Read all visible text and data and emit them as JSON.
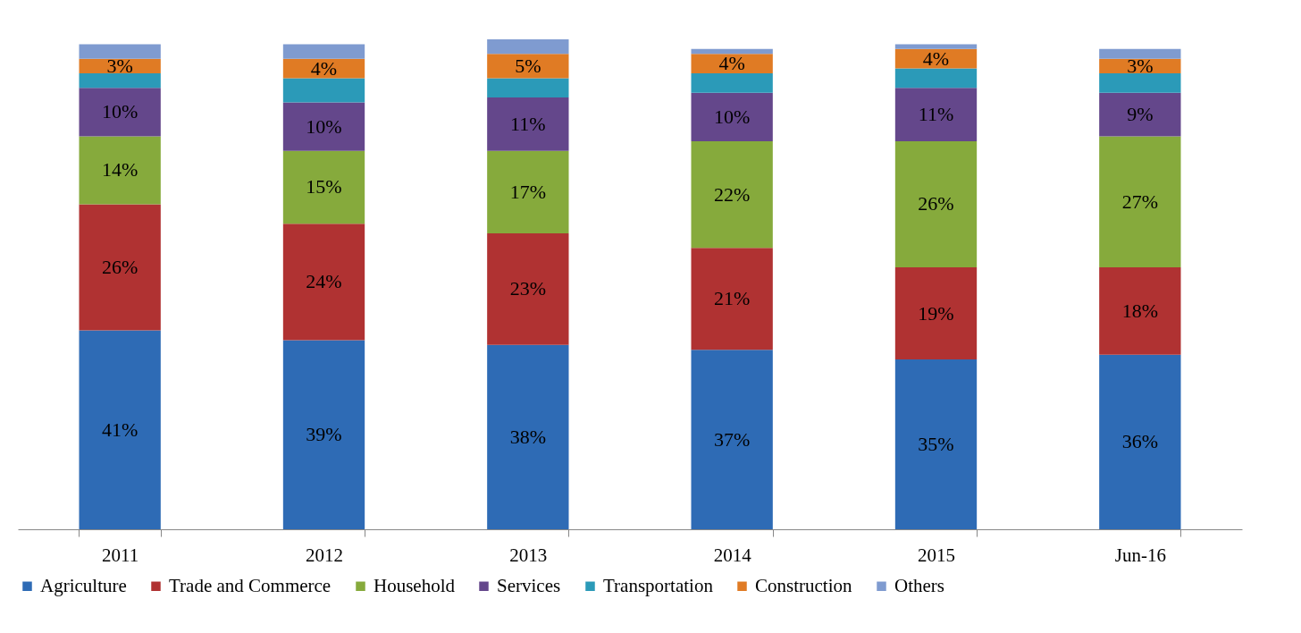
{
  "chart_data": {
    "type": "bar",
    "stacked": true,
    "legend": "bottom",
    "categories": [
      "2011",
      "2012",
      "2013",
      "2014",
      "2015",
      "Jun-16"
    ],
    "series": [
      {
        "name": "Agriculture",
        "color": "#2e6bb5",
        "values": [
          41,
          39,
          38,
          37,
          35,
          36
        ],
        "value_labels": [
          "41%",
          "39%",
          "38%",
          "37%",
          "35%",
          "36%"
        ]
      },
      {
        "name": "Trade and Commerce",
        "color": "#b03232",
        "values": [
          26,
          24,
          23,
          21,
          19,
          18
        ],
        "value_labels": [
          "26%",
          "24%",
          "23%",
          "21%",
          "19%",
          "18%"
        ]
      },
      {
        "name": "Household",
        "color": "#86aa3c",
        "values": [
          14,
          15,
          17,
          22,
          26,
          27
        ],
        "value_labels": [
          "14%",
          "15%",
          "17%",
          "22%",
          "26%",
          "27%"
        ]
      },
      {
        "name": "Services",
        "color": "#64478b",
        "values": [
          10,
          10,
          11,
          10,
          11,
          9
        ],
        "value_labels": [
          "10%",
          "10%",
          "11%",
          "10%",
          "11%",
          "9%"
        ]
      },
      {
        "name": "Transportation",
        "color": "#2b9ab8",
        "values": [
          3,
          5,
          4,
          4,
          4,
          4
        ],
        "value_labels": [
          null,
          null,
          null,
          null,
          null,
          null
        ]
      },
      {
        "name": "Construction",
        "color": "#e07b24",
        "values": [
          3,
          4,
          5,
          4,
          4,
          3
        ],
        "value_labels": [
          "3%",
          "4%",
          "5%",
          "4%",
          "4%",
          "3%"
        ]
      },
      {
        "name": "Others",
        "color": "#7f9bd0",
        "values": [
          3,
          3,
          3,
          1,
          1,
          2
        ],
        "value_labels": [
          null,
          null,
          null,
          null,
          null,
          null
        ]
      }
    ]
  }
}
